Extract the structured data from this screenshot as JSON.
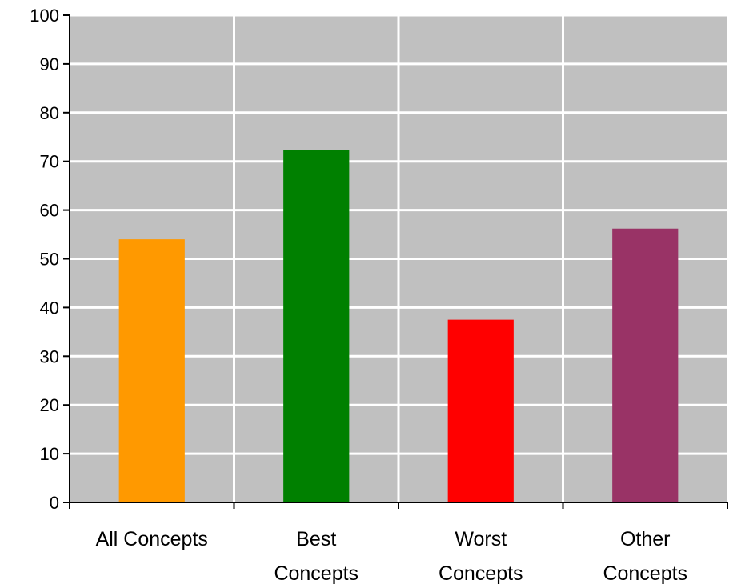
{
  "chart_data": {
    "type": "bar",
    "categories": [
      [
        "All Concepts"
      ],
      [
        "Best",
        "Concepts"
      ],
      [
        "Worst",
        "Concepts"
      ],
      [
        "Other",
        "Concepts"
      ]
    ],
    "values": [
      54,
      72.3,
      37.5,
      56.2
    ],
    "colors": [
      "#ff9900",
      "#008000",
      "#ff0000",
      "#993366"
    ],
    "ylim": [
      0,
      100
    ],
    "yticks": [
      0,
      10,
      20,
      30,
      40,
      50,
      60,
      70,
      80,
      90,
      100
    ],
    "plot_background": "#c0c0c0",
    "grid_color": "#ffffff",
    "grid": true,
    "legend": "none",
    "title": "",
    "xlabel": "",
    "ylabel": ""
  }
}
